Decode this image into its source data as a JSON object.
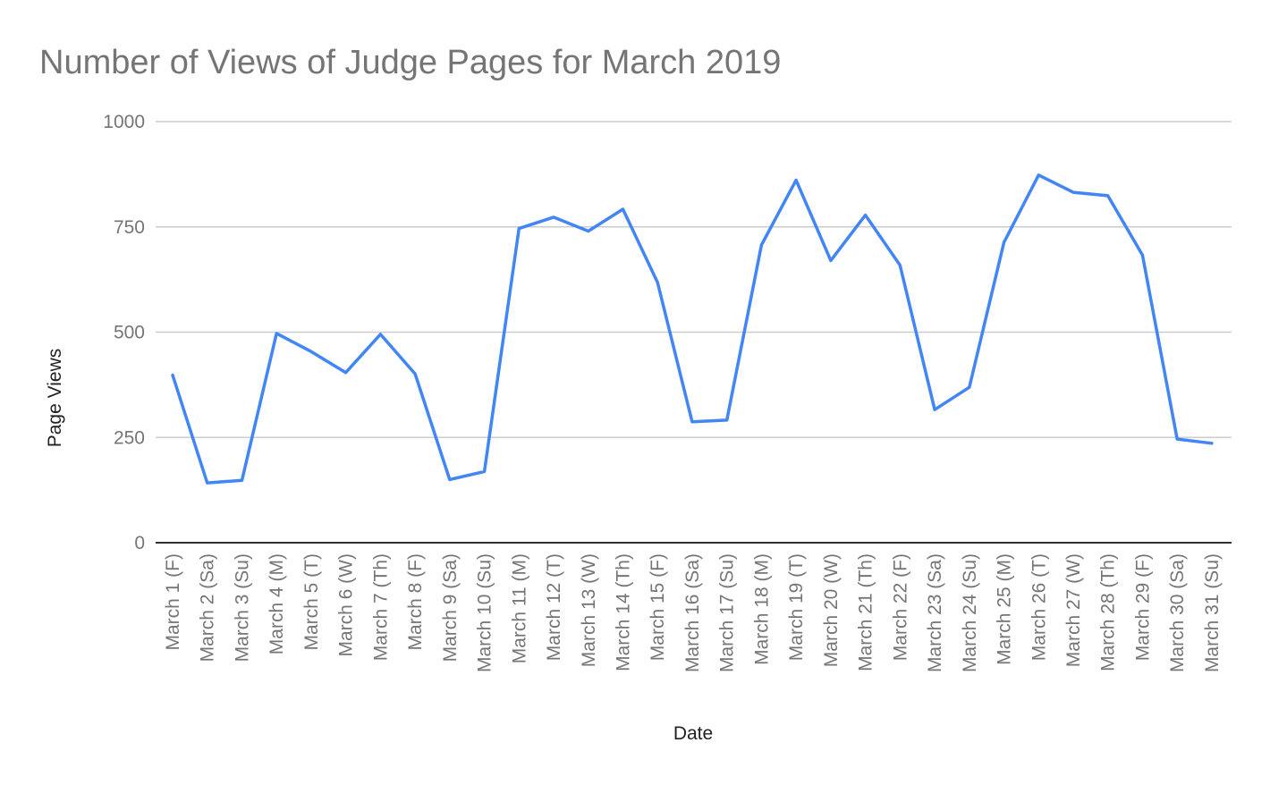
{
  "chart_data": {
    "type": "line",
    "title": "Number of Views of Judge Pages for March 2019",
    "xlabel": "Date",
    "ylabel": "Page Views",
    "ylim": [
      0,
      1000
    ],
    "yticks": [
      0,
      250,
      500,
      750,
      1000
    ],
    "grid": true,
    "legend": "none",
    "categories": [
      "March 1 (F)",
      "March 2 (Sa)",
      "March 3 (Su)",
      "March 4 (M)",
      "March 5 (T)",
      "March 6 (W)",
      "March 7 (Th)",
      "March 8 (F)",
      "March 9 (Sa)",
      "March 10 (Su)",
      "March 11 (M)",
      "March 12 (T)",
      "March 13 (W)",
      "March 14 (Th)",
      "March 15 (F)",
      "March 16 (Sa)",
      "March 17 (Su)",
      "March 18 (M)",
      "March 19 (T)",
      "March 20 (W)",
      "March 21 (Th)",
      "March 22 (F)",
      "March 23 (Sa)",
      "March 24 (Su)",
      "March 25 (M)",
      "March 26 (T)",
      "March 27 (W)",
      "March 28 (Th)",
      "March 29 (F)",
      "March 30 (Sa)",
      "March 31 (Su)"
    ],
    "series": [
      {
        "color": "#4285f4",
        "values": [
          398,
          142,
          148,
          497,
          454,
          404,
          495,
          401,
          150,
          169,
          746,
          773,
          740,
          792,
          618,
          287,
          291,
          707,
          861,
          670,
          778,
          659,
          316,
          369,
          713,
          873,
          832,
          824,
          683,
          246,
          236
        ]
      }
    ]
  }
}
